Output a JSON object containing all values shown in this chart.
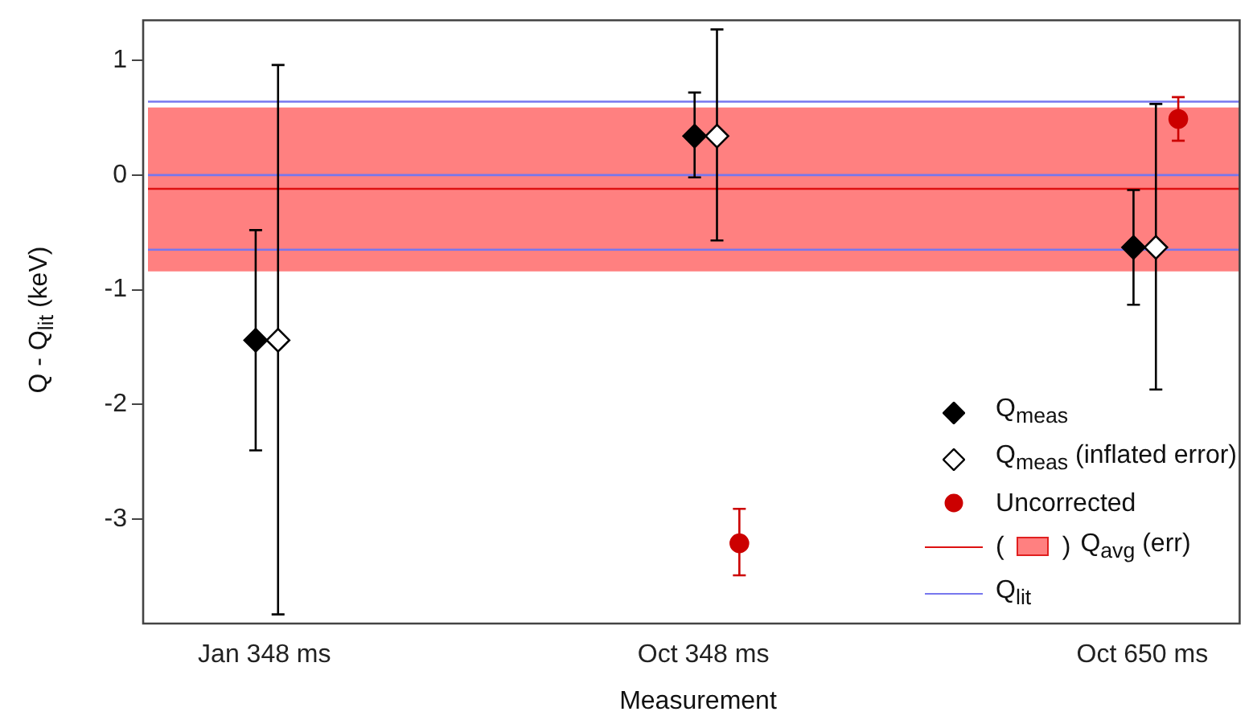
{
  "chart_data": {
    "type": "scatter",
    "xlabel": "Measurement",
    "ylabel": "Q - Q$_{lit}$ (keV)",
    "categories": [
      "Jan 348 ms",
      "Oct 348 ms",
      "Oct 650 ms"
    ],
    "series": [
      {
        "name": "Q$_{meas}$",
        "color": "#000000",
        "marker": "diamond",
        "values": [
          -1.44,
          0.34,
          -0.63
        ],
        "errors": [
          [
            -2.4,
            -0.48
          ],
          [
            -0.02,
            0.72
          ],
          [
            -1.13,
            -0.13
          ]
        ]
      },
      {
        "name": "Q$_{meas}$ (inflated error)",
        "color": "#000000",
        "marker": "diamond",
        "values": [
          -1.44,
          0.34,
          -0.63
        ],
        "errors": [
          [
            -3.83,
            0.96
          ],
          [
            -0.57,
            1.27
          ],
          [
            -1.87,
            0.62
          ]
        ]
      },
      {
        "name": "Uncorrected",
        "color": "#cc0000",
        "marker": "circle",
        "values": [
          null,
          -3.21,
          0.49
        ],
        "errors": [
          null,
          [
            -3.49,
            -2.91
          ],
          [
            0.3,
            0.68
          ]
        ]
      }
    ],
    "ylim": [
      -3.91,
      1.35
    ],
    "yticks": [
      -3,
      -2,
      -1,
      0,
      1
    ],
    "grid": false,
    "legend": "bottom right",
    "bands": [
      {
        "axis": "y",
        "from": -0.84,
        "to": 0.59,
        "color": "#ff8080",
        "label": "( )"
      }
    ],
    "ref_lines": [
      {
        "axis": "y",
        "value": -0.12,
        "color": "#dd1111",
        "label": "Q$_{avg}$ (err)"
      },
      {
        "axis": "y",
        "value": 0.64,
        "color": "#7777ee",
        "label": "Q$_{lit}$"
      },
      {
        "axis": "y",
        "value": 0,
        "color": "#7777ee"
      },
      {
        "axis": "y",
        "value": -0.65,
        "color": "#7777ee"
      }
    ]
  }
}
